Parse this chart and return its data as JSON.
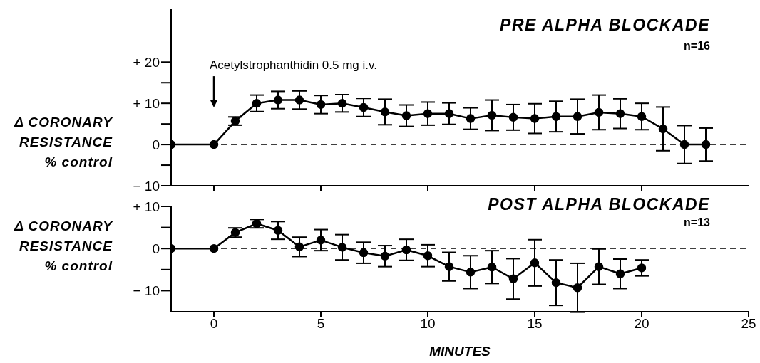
{
  "chart_data": [
    {
      "type": "line",
      "title": "PRE ALPHA BLOCKADE",
      "ylabel": "Δ CORONARY RESISTANCE % control",
      "annotations": [
        "Acetylstrophanthidin 0.5 mg i.v.",
        "n=16"
      ],
      "xlim": [
        -2,
        25
      ],
      "xticks": [
        0,
        5,
        10,
        15,
        20
      ],
      "ylim": [
        -10,
        33
      ],
      "yticks": [
        {
          "value": -10,
          "label": "− 10"
        },
        {
          "value": -5,
          "label": null
        },
        0,
        {
          "value": 5,
          "label": null
        },
        {
          "value": 10,
          "label": "+ 10"
        },
        {
          "value": 15,
          "label": null
        },
        {
          "value": 20,
          "label": "+ 20"
        }
      ],
      "tick_labels": "y",
      "ref_lines": [
        {
          "axis": "y",
          "value": 0,
          "line_style": "dashed"
        }
      ],
      "marker": "circle",
      "line_style": "solid",
      "series": [
        {
          "color": "#000000",
          "x": [
            -2,
            0,
            1,
            2,
            3,
            4,
            5,
            6,
            7,
            8,
            9,
            10,
            11,
            12,
            13,
            14,
            15,
            16,
            17,
            18,
            19,
            20,
            21,
            22,
            23
          ],
          "values": [
            0,
            0,
            5.7,
            10,
            10.8,
            10.8,
            9.7,
            10,
            9,
            7.9,
            7,
            7.5,
            7.5,
            6.3,
            7.1,
            6.6,
            6.3,
            6.8,
            6.8,
            7.8,
            7.5,
            6.8,
            3.8,
            0,
            0
          ],
          "errors": [
            null,
            null,
            1,
            2,
            2.1,
            2.2,
            2.2,
            2.1,
            2.2,
            3.1,
            2.6,
            2.8,
            2.6,
            2.6,
            3.7,
            3.1,
            3.6,
            3.7,
            4.2,
            4.2,
            3.6,
            3.2,
            5.3,
            4.6,
            4
          ]
        }
      ]
    },
    {
      "type": "line",
      "title": "POST ALPHA BLOCKADE",
      "ylabel": "Δ CORONARY RESISTANCE % control",
      "xlabel": "MINUTES",
      "annotations": [
        "n=13"
      ],
      "xlim": [
        -2,
        25
      ],
      "xticks": [
        0,
        5,
        10,
        15,
        20,
        25
      ],
      "ylim": [
        -15,
        10
      ],
      "yticks": [
        {
          "value": -10,
          "label": "− 10"
        },
        {
          "value": -5,
          "label": null
        },
        0,
        {
          "value": 5,
          "label": null
        },
        {
          "value": 10,
          "label": "+ 10"
        }
      ],
      "ref_lines": [
        {
          "axis": "y",
          "value": 0,
          "line_style": "dashed"
        }
      ],
      "marker": "circle",
      "line_style": "solid",
      "series": [
        {
          "color": "#000000",
          "x": [
            -2,
            0,
            1,
            2,
            3,
            4,
            5,
            6,
            7,
            8,
            9,
            10,
            11,
            12,
            13,
            14,
            15,
            16,
            17,
            18,
            19,
            20
          ],
          "values": [
            0,
            0,
            3.8,
            5.9,
            4.3,
            0.4,
            2,
            0.3,
            -1,
            -1.8,
            -0.3,
            -1.7,
            -4.3,
            -5.6,
            -4.4,
            -7.2,
            -3.4,
            -8.1,
            -9.3,
            -4.3,
            -6,
            -4.6
          ],
          "errors": [
            null,
            null,
            1.1,
            1,
            2.1,
            2.3,
            2.5,
            3,
            2.5,
            2.5,
            2.5,
            2.6,
            3.4,
            3.9,
            3.9,
            4.8,
            5.5,
            5.4,
            5.8,
            4.2,
            3.5,
            1.9
          ]
        }
      ]
    }
  ]
}
